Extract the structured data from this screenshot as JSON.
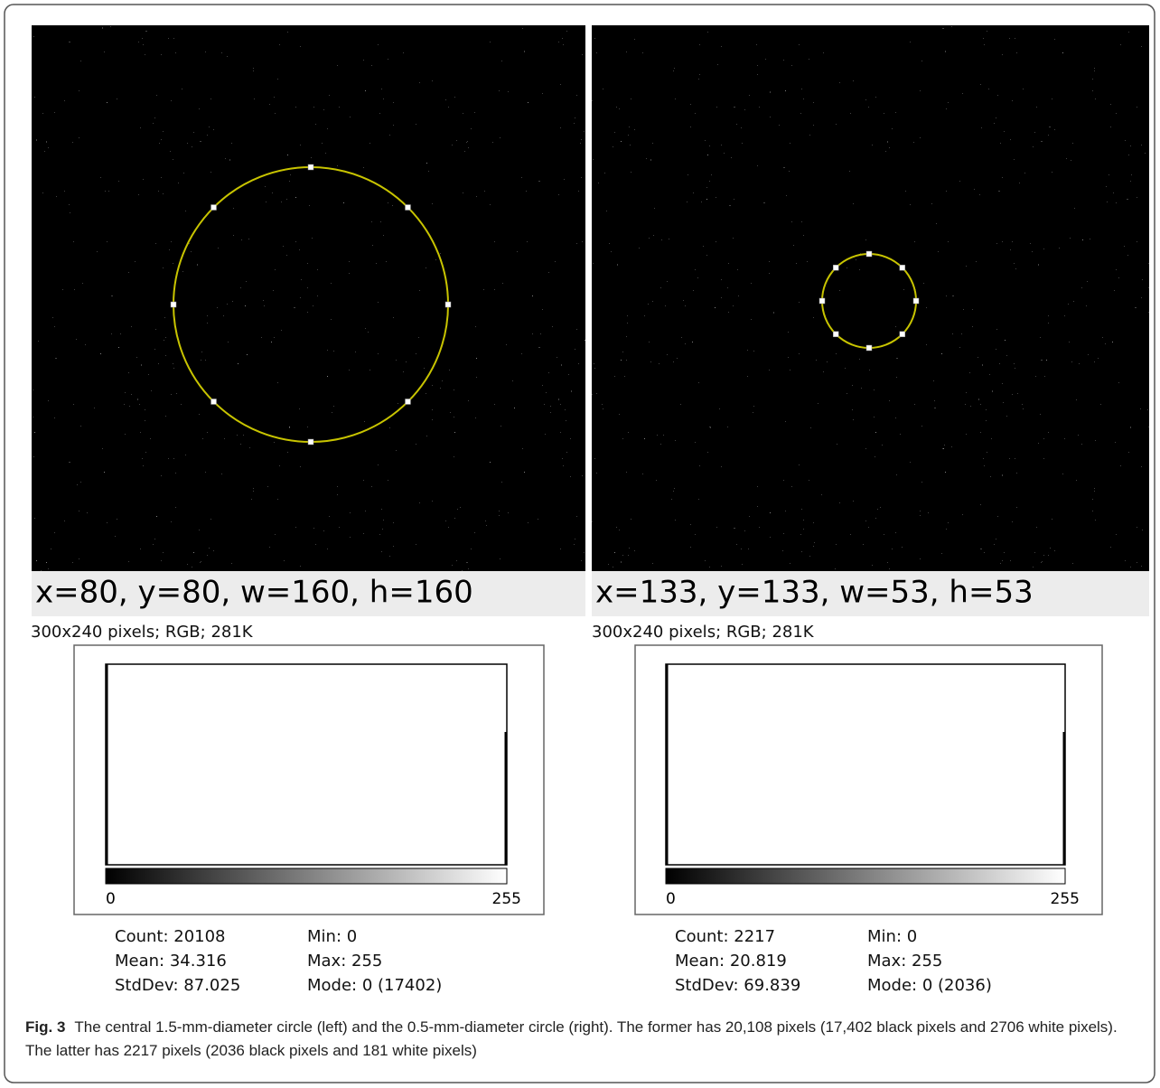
{
  "panels": [
    {
      "roi": "x=80, y=80, w=160, h=160",
      "info": "300x240 pixels; RGB; 281K",
      "axis_min": "0",
      "axis_max": "255",
      "stats": [
        [
          "Count: 20108",
          "Min: 0"
        ],
        [
          "Mean: 34.316",
          "Max: 255"
        ],
        [
          "StdDev: 87.025",
          "Mode: 0 (17402)"
        ]
      ]
    },
    {
      "roi": "x=133, y=133, w=53, h=53",
      "info": "300x240 pixels; RGB; 281K",
      "axis_min": "0",
      "axis_max": "255",
      "stats": [
        [
          "Count: 2217",
          "Min: 0"
        ],
        [
          "Mean: 20.819",
          "Max: 255"
        ],
        [
          "StdDev: 69.839",
          "Mode: 0 (2036)"
        ]
      ]
    }
  ],
  "caption": {
    "label": "Fig. 3",
    "text": "The central 1.5-mm-diameter circle (left) and the 0.5-mm-diameter circle (right). The former has 20,108 pixels (17,402 black pixels and 2706 white pixels). The latter has 2217 pixels (2036 black pixels and 181 white pixels)"
  }
}
